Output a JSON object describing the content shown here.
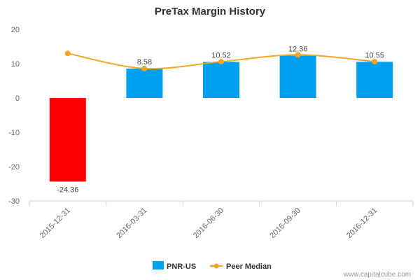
{
  "chart_data": {
    "type": "bar",
    "title": "PreTax Margin History",
    "categories": [
      "2015-12-31",
      "2016-03-31",
      "2016-06-30",
      "2016-09-30",
      "2016-12-31"
    ],
    "series": [
      {
        "name": "PNR-US",
        "type": "bar",
        "values": [
          -24.36,
          8.58,
          10.52,
          12.36,
          10.55
        ],
        "data_labels": [
          "-24.36",
          "8.58",
          "10.52",
          "12.36",
          "10.55"
        ],
        "color": "#00a0f0",
        "negative_color": "#ff0000"
      },
      {
        "name": "Peer Median",
        "type": "line",
        "values": [
          13.0,
          8.6,
          10.6,
          12.6,
          10.6
        ],
        "color": "#f5a623"
      }
    ],
    "yticks": [
      "20",
      "10",
      "0",
      "-10",
      "-20",
      "-30"
    ],
    "ylim": [
      -30,
      20
    ],
    "grid": false,
    "legend_position": "bottom-center",
    "credit": "www.capitalcube.com"
  }
}
